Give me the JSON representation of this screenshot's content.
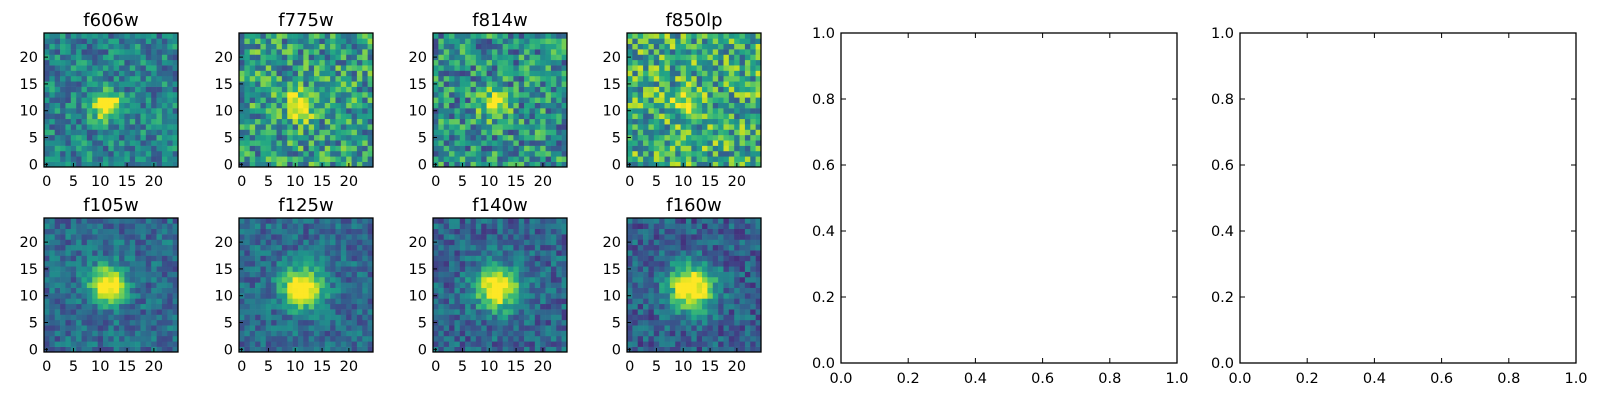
{
  "chart_data": [
    {
      "type": "heatmap",
      "title": "f606w",
      "xticks": [
        "0",
        "5",
        "10",
        "15",
        "20"
      ],
      "yticks": [
        "0",
        "5",
        "10",
        "15",
        "20"
      ],
      "xlim": [
        -0.5,
        24.5
      ],
      "ylim": [
        -0.5,
        24.5
      ],
      "grid_size": 25,
      "source_center": [
        11,
        11
      ],
      "source_sigma": 1.8,
      "source_amp": 0.75,
      "noise": 0.22,
      "base": 0.45,
      "seed": 11,
      "colormap": "viridis"
    },
    {
      "type": "heatmap",
      "title": "f775w",
      "xticks": [
        "0",
        "5",
        "10",
        "15",
        "20"
      ],
      "yticks": [
        "0",
        "5",
        "10",
        "15",
        "20"
      ],
      "xlim": [
        -0.5,
        24.5
      ],
      "ylim": [
        -0.5,
        24.5
      ],
      "grid_size": 25,
      "source_center": [
        11,
        11
      ],
      "source_sigma": 1.8,
      "source_amp": 0.6,
      "noise": 0.3,
      "base": 0.55,
      "seed": 23,
      "colormap": "viridis"
    },
    {
      "type": "heatmap",
      "title": "f814w",
      "xticks": [
        "0",
        "5",
        "10",
        "15",
        "20"
      ],
      "yticks": [
        "0",
        "5",
        "10",
        "15",
        "20"
      ],
      "xlim": [
        -0.5,
        24.5
      ],
      "ylim": [
        -0.5,
        24.5
      ],
      "grid_size": 25,
      "source_center": [
        11,
        11
      ],
      "source_sigma": 1.7,
      "source_amp": 0.6,
      "noise": 0.3,
      "base": 0.5,
      "seed": 37,
      "colormap": "viridis"
    },
    {
      "type": "heatmap",
      "title": "f850lp",
      "xticks": [
        "0",
        "5",
        "10",
        "15",
        "20"
      ],
      "yticks": [
        "0",
        "5",
        "10",
        "15",
        "20"
      ],
      "xlim": [
        -0.5,
        24.5
      ],
      "ylim": [
        -0.5,
        24.5
      ],
      "grid_size": 25,
      "source_center": [
        11,
        11
      ],
      "source_sigma": 1.6,
      "source_amp": 0.45,
      "noise": 0.32,
      "base": 0.62,
      "seed": 51,
      "colormap": "viridis"
    },
    {
      "type": "heatmap",
      "title": "f105w",
      "xticks": [
        "0",
        "5",
        "10",
        "15",
        "20"
      ],
      "yticks": [
        "0",
        "5",
        "10",
        "15",
        "20"
      ],
      "xlim": [
        -0.5,
        24.5
      ],
      "ylim": [
        -0.5,
        24.5
      ],
      "grid_size": 25,
      "source_center": [
        11.5,
        12
      ],
      "source_sigma": 2.4,
      "source_amp": 0.8,
      "noise": 0.16,
      "base": 0.35,
      "seed": 63,
      "colormap": "viridis"
    },
    {
      "type": "heatmap",
      "title": "f125w",
      "xticks": [
        "0",
        "5",
        "10",
        "15",
        "20"
      ],
      "yticks": [
        "0",
        "5",
        "10",
        "15",
        "20"
      ],
      "xlim": [
        -0.5,
        24.5
      ],
      "ylim": [
        -0.5,
        24.5
      ],
      "grid_size": 25,
      "source_center": [
        11.5,
        11.5
      ],
      "source_sigma": 2.6,
      "source_amp": 0.8,
      "noise": 0.16,
      "base": 0.35,
      "seed": 71,
      "colormap": "viridis"
    },
    {
      "type": "heatmap",
      "title": "f140w",
      "xticks": [
        "0",
        "5",
        "10",
        "15",
        "20"
      ],
      "yticks": [
        "0",
        "5",
        "10",
        "15",
        "20"
      ],
      "xlim": [
        -0.5,
        24.5
      ],
      "ylim": [
        -0.5,
        24.5
      ],
      "grid_size": 25,
      "source_center": [
        11.5,
        11.5
      ],
      "source_sigma": 2.8,
      "source_amp": 0.8,
      "noise": 0.17,
      "base": 0.33,
      "seed": 89,
      "colormap": "viridis"
    },
    {
      "type": "heatmap",
      "title": "f160w",
      "xticks": [
        "0",
        "5",
        "10",
        "15",
        "20"
      ],
      "yticks": [
        "0",
        "5",
        "10",
        "15",
        "20"
      ],
      "xlim": [
        -0.5,
        24.5
      ],
      "ylim": [
        -0.5,
        24.5
      ],
      "grid_size": 25,
      "source_center": [
        11.5,
        11.5
      ],
      "source_sigma": 3.0,
      "source_amp": 0.85,
      "noise": 0.17,
      "base": 0.3,
      "seed": 97,
      "colormap": "viridis"
    },
    {
      "type": "line",
      "title": "",
      "series": [],
      "xlim": [
        0.0,
        1.0
      ],
      "ylim": [
        0.0,
        1.0
      ],
      "xticks": [
        "0.0",
        "0.2",
        "0.4",
        "0.6",
        "0.8",
        "1.0"
      ],
      "yticks": [
        "0.0",
        "0.2",
        "0.4",
        "0.6",
        "0.8",
        "1.0"
      ]
    },
    {
      "type": "line",
      "title": "",
      "series": [],
      "xlim": [
        0.0,
        1.0
      ],
      "ylim": [
        0.0,
        1.0
      ],
      "xticks": [
        "0.0",
        "0.2",
        "0.4",
        "0.6",
        "0.8",
        "1.0"
      ],
      "yticks": [
        "0.0",
        "0.2",
        "0.4",
        "0.6",
        "0.8",
        "1.0"
      ]
    }
  ]
}
